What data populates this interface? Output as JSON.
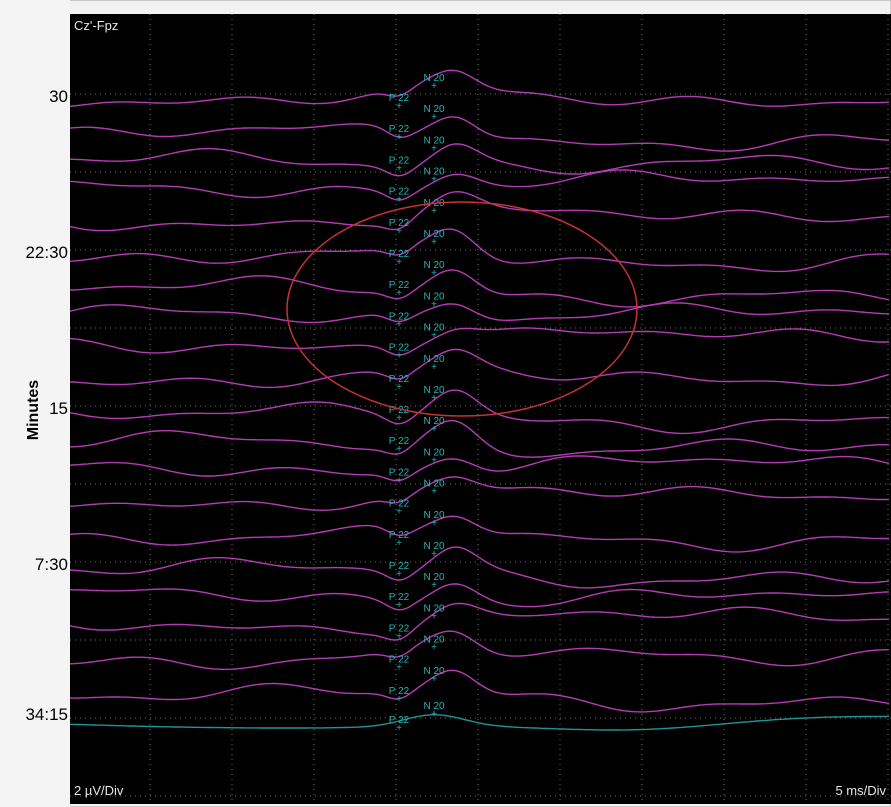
{
  "chart_data": {
    "type": "line",
    "channel": "Cz'-Fpz",
    "ylabel": "Minutes",
    "yticks": [
      "30",
      "22:30",
      "15",
      "7:30",
      "34:15"
    ],
    "scale_left": "2 µV/Div",
    "scale_right": "5 ms/Div",
    "grid": true,
    "series_color": "#b43cb4",
    "baseline_color": "#1e9696",
    "marker_color": "#28b4b4",
    "annotation": "ellipse",
    "annotation_color": "#c83232",
    "traces": [
      {
        "label": "30"
      },
      {
        "label": ""
      },
      {
        "label": ""
      },
      {
        "label": ""
      },
      {
        "label": ""
      },
      {
        "label": "22:30"
      },
      {
        "label": ""
      },
      {
        "label": ""
      },
      {
        "label": ""
      },
      {
        "label": ""
      },
      {
        "label": "15"
      },
      {
        "label": ""
      },
      {
        "label": ""
      },
      {
        "label": ""
      },
      {
        "label": ""
      },
      {
        "label": "7:30"
      },
      {
        "label": ""
      },
      {
        "label": ""
      },
      {
        "label": ""
      },
      {
        "label": ""
      },
      {
        "label": "34:15"
      }
    ],
    "markers": [
      {
        "name": "P 22"
      },
      {
        "name": "N 20"
      }
    ]
  }
}
